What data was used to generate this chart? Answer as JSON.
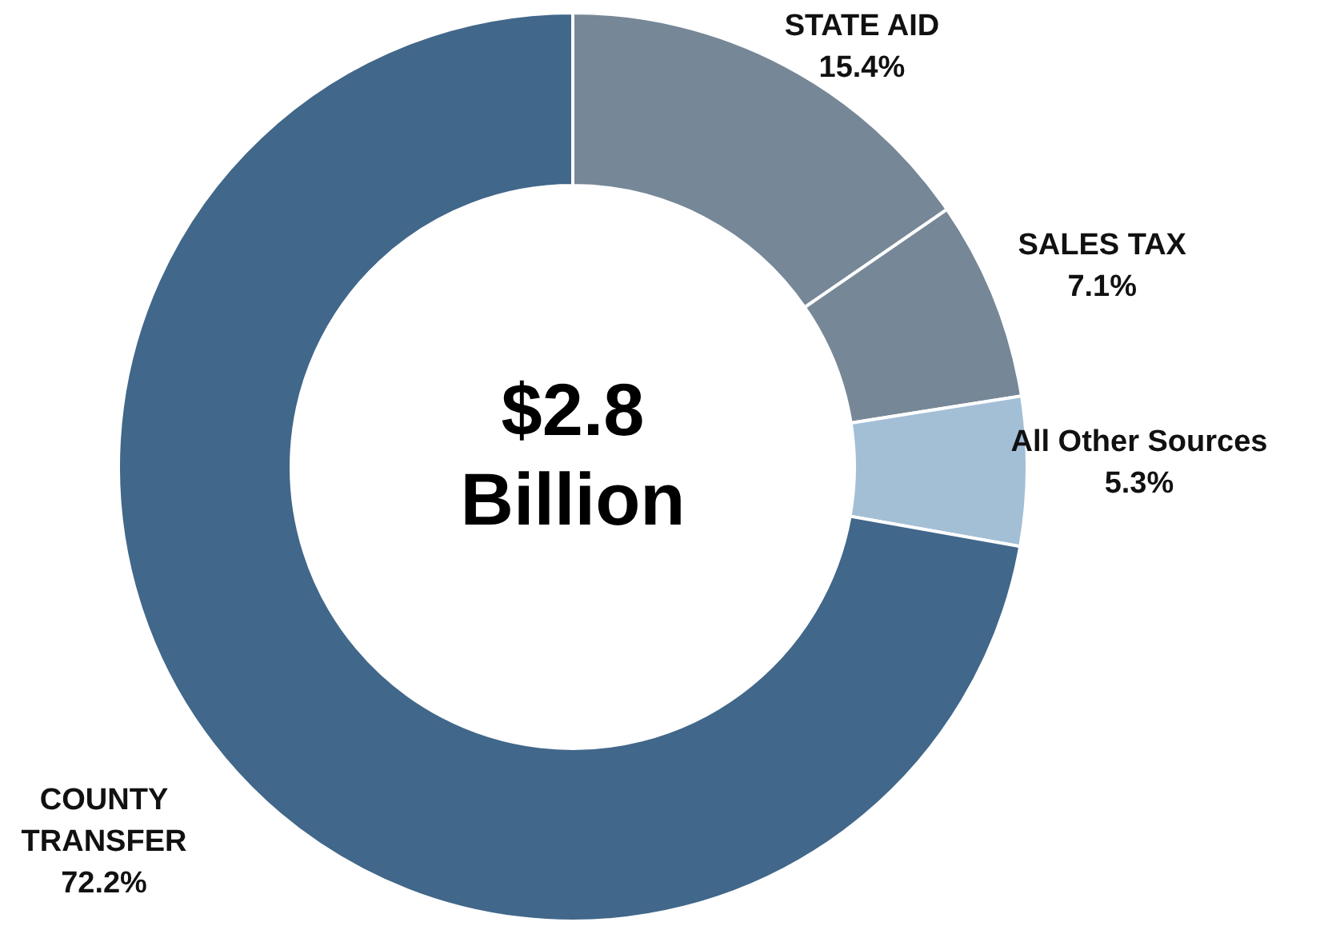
{
  "chart_data": {
    "type": "donut",
    "categories": [
      "STATE AID",
      "SALES TAX",
      "All Other Sources",
      "COUNTY TRANSFER"
    ],
    "values": [
      15.4,
      7.1,
      5.3,
      72.2
    ],
    "value_labels": [
      "15.4%",
      "7.1%",
      "5.3%",
      "72.2%"
    ],
    "colors": [
      "#768797",
      "#768797",
      "#a3bfd6",
      "#41678a"
    ],
    "annotations": [
      "$2.8",
      "Billion"
    ]
  }
}
